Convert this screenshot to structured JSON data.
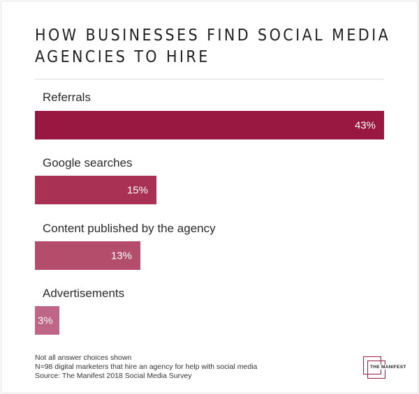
{
  "chart_data": {
    "type": "bar",
    "orientation": "horizontal",
    "title": "HOW BUSINESSES FIND SOCIAL MEDIA AGENCIES TO HIRE",
    "title_lines": [
      "HOW BUSINESSES FIND SOCIAL MEDIA",
      "AGENCIES TO HIRE"
    ],
    "categories": [
      "Referrals",
      "Google searches",
      "Content published by the agency",
      "Advertisements"
    ],
    "values": [
      43,
      15,
      13,
      3
    ],
    "value_labels": [
      "43%",
      "15%",
      "13%",
      "3%"
    ],
    "unit": "%",
    "xlim": [
      0,
      43
    ],
    "grid": false,
    "legend": "none",
    "colors": [
      "#981841",
      "#a93153",
      "#b34d6b",
      "#bf6585"
    ]
  },
  "footnotes": [
    "Not all answer choices shown",
    "N=98 digital marketers that hire an agency for help with social media",
    "Source: The Manifest 2018 Social Media Survey"
  ],
  "logo": {
    "text": "THE MANIFEST",
    "color": "#9b1c41"
  }
}
